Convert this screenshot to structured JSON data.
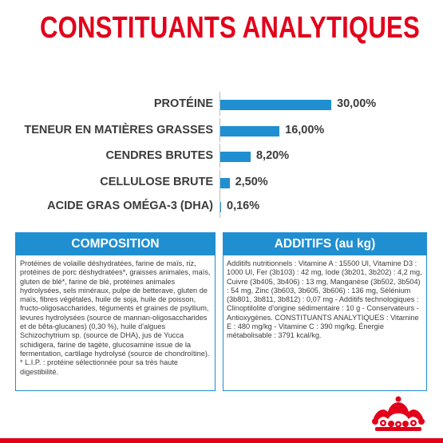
{
  "title": "CONSTITUANTS ANALYTIQUES",
  "chart_data": {
    "type": "bar",
    "orientation": "horizontal",
    "categories": [
      "PROTÉINE",
      "TENEUR EN MATIÈRES GRASSES",
      "CENDRES BRUTES",
      "CELLULOSE BRUTE",
      "ACIDE GRAS OMÉGA-3 (DHA)"
    ],
    "values": [
      30.0,
      16.0,
      8.2,
      2.5,
      0.16
    ],
    "value_labels": [
      "30,00%",
      "16,00%",
      "8,20%",
      "2,50%",
      "0,16%"
    ],
    "bar_color": "#1f8fd1",
    "grid": false
  },
  "composition": {
    "header": "COMPOSITION",
    "body": "Protéines de volaille déshydratées, farine de maïs, riz, protéines de porc déshydratées*, graisses animales, maïs, gluten de blé*, farine de blé, protéines animales hydrolysées, sels minéraux, pulpe de betterave, gluten de maïs, fibres végétales, huile de soja, huile de poisson, fructo-oligosaccharides, téguments et graines de psyllium, levures hydrolysées (source de mannan-oligosaccharides et de bêta-glucanes) (0,30 %), huile d'algues Schizochytrium sp. (source de DHA), jus de Yucca schidigera, farine de tagète, glucosamine issue de la fermentation, cartilage hydrolysé (source de chondroïtine).",
    "footnote": "* L.I.P. : protéine sélectionnée pour sa très haute digestibilité."
  },
  "additifs": {
    "header": "ADDITIFS (au kg)",
    "body": "Additifs nutritionnels : Vitamine A : 15500 UI, Vitamine D3 : 1000 UI, Fer (3b103) : 42 mg, Iode (3b201, 3b202) : 4,2 mg, Cuivre (3b405, 3b406) : 13 mg, Manganèse (3b502, 3b504) : 54 mg, Zinc (3b603, 3b605, 3b606) : 136 mg, Sélénium (3b801, 3b811, 3b812) : 0,07 mg - Additifs technologiques : Clinoptilolite d'origine sédimentaire : 10 g - Conservateurs - Antioxygènes. CONSTITUANTS ANALYTIQUES : Vitamine E : 480 mg/kg - Vitamine C : 390 mg/kg. Énergie métabolisable : 3791 kcal/kg."
  },
  "colors": {
    "brand_red": "#e2001a",
    "accent_blue": "#1f8fd1",
    "text": "#3b3b3b"
  },
  "logo": {
    "icon": "royal-canin-crown-logo"
  }
}
